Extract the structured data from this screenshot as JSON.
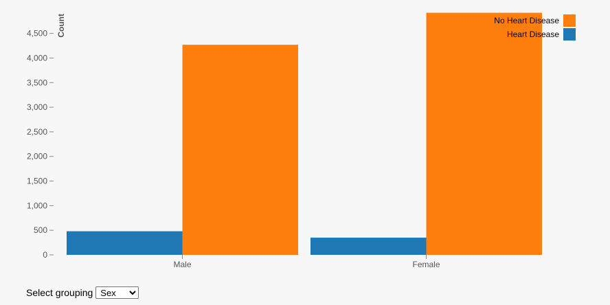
{
  "chart_data": {
    "type": "bar",
    "categories": [
      "Male",
      "Female"
    ],
    "series": [
      {
        "name": "Heart Disease",
        "values": [
          480,
          350
        ],
        "color": "#1f77b4"
      },
      {
        "name": "No Heart Disease",
        "values": [
          4270,
          4920
        ],
        "color": "#ff7f0e"
      }
    ],
    "ylabel": "Count",
    "ylim": [
      0,
      4900
    ],
    "yticks": [
      0,
      500,
      1000,
      1500,
      2000,
      2500,
      3000,
      3500,
      4000,
      4500
    ],
    "ytick_labels": [
      "0",
      "500",
      "1,000",
      "1,500",
      "2,000",
      "2,500",
      "3,000",
      "3,500",
      "4,000",
      "4,500"
    ],
    "legend": {
      "placement": "top-right",
      "entries": [
        {
          "label": "No Heart Disease",
          "color": "#ff7f0e"
        },
        {
          "label": "Heart Disease",
          "color": "#1f77b4"
        }
      ]
    }
  },
  "controls": {
    "grouping_label": "Select grouping",
    "grouping_value": "Sex",
    "grouping_options": [
      "Sex"
    ]
  }
}
